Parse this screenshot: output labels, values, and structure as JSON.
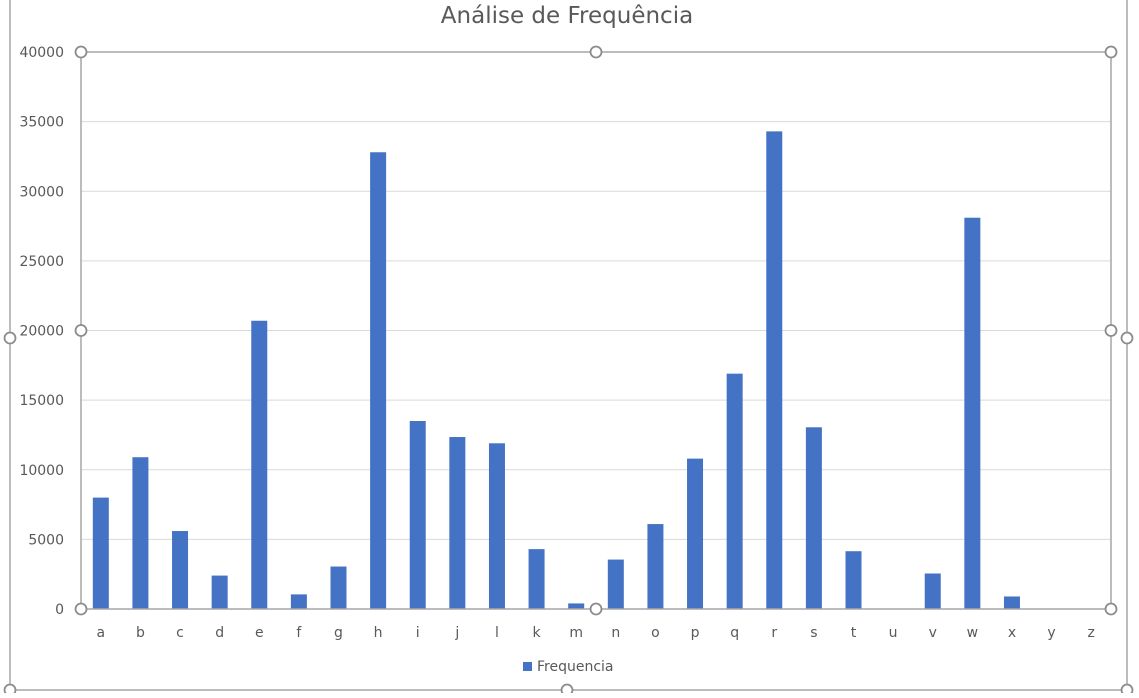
{
  "chart_data": {
    "type": "bar",
    "title": "Análise de Frequência",
    "xlabel": "",
    "ylabel": "",
    "ylim": [
      0,
      40000
    ],
    "yticks": [
      0,
      5000,
      10000,
      15000,
      20000,
      25000,
      30000,
      35000,
      40000
    ],
    "grid": true,
    "legend_position": "bottom",
    "categories": [
      "a",
      "b",
      "c",
      "d",
      "e",
      "f",
      "g",
      "h",
      "i",
      "j",
      "l",
      "k",
      "m",
      "n",
      "o",
      "p",
      "q",
      "r",
      "s",
      "t",
      "u",
      "v",
      "w",
      "x",
      "y",
      "z"
    ],
    "series": [
      {
        "name": "Frequencia",
        "color": "#4472c4",
        "values": [
          8000,
          10900,
          5600,
          2400,
          20700,
          1050,
          3050,
          32800,
          13500,
          12350,
          11900,
          4300,
          400,
          3550,
          6100,
          10800,
          16900,
          34300,
          13050,
          4150,
          0,
          2550,
          28100,
          900,
          0,
          0
        ]
      }
    ]
  }
}
